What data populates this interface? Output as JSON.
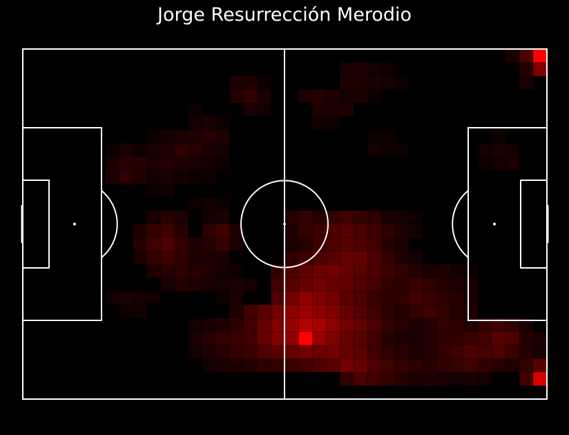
{
  "title": "Jorge Resurrección Merodio",
  "colors": {
    "background": "#000000",
    "lines": "#ffffff",
    "heat": "#ff0000"
  },
  "chart_data": {
    "type": "heatmap",
    "title": "Jorge Resurrección Merodio",
    "grid_cols": 38,
    "grid_rows": 26,
    "value_range": [
      0,
      1
    ],
    "cells": [
      [
        0,
        36,
        0.3
      ],
      [
        0,
        37,
        1.0
      ],
      [
        1,
        36,
        0.15
      ],
      [
        1,
        37,
        0.5
      ],
      [
        0,
        35,
        0.1
      ],
      [
        2,
        36,
        0.1
      ],
      [
        2,
        17,
        0.05
      ],
      [
        1,
        23,
        0.1
      ],
      [
        1,
        24,
        0.12
      ],
      [
        1,
        25,
        0.08
      ],
      [
        1,
        26,
        0.06
      ],
      [
        2,
        16,
        0.12
      ],
      [
        2,
        15,
        0.1
      ],
      [
        2,
        23,
        0.12
      ],
      [
        2,
        24,
        0.1
      ],
      [
        2,
        25,
        0.1
      ],
      [
        2,
        26,
        0.08
      ],
      [
        2,
        27,
        0.05
      ],
      [
        3,
        15,
        0.15
      ],
      [
        3,
        16,
        0.2
      ],
      [
        3,
        17,
        0.1
      ],
      [
        3,
        20,
        0.1
      ],
      [
        3,
        21,
        0.15
      ],
      [
        3,
        22,
        0.12
      ],
      [
        3,
        23,
        0.08
      ],
      [
        3,
        24,
        0.1
      ],
      [
        3,
        25,
        0.06
      ],
      [
        4,
        16,
        0.1
      ],
      [
        4,
        17,
        0.08
      ],
      [
        4,
        21,
        0.12
      ],
      [
        4,
        22,
        0.1
      ],
      [
        4,
        23,
        0.12
      ],
      [
        5,
        21,
        0.08
      ],
      [
        5,
        22,
        0.06
      ],
      [
        4,
        12,
        0.05
      ],
      [
        5,
        12,
        0.08
      ],
      [
        5,
        13,
        0.1
      ],
      [
        5,
        14,
        0.06
      ],
      [
        6,
        11,
        0.1
      ],
      [
        6,
        12,
        0.12
      ],
      [
        6,
        13,
        0.15
      ],
      [
        6,
        14,
        0.12
      ],
      [
        6,
        9,
        0.05
      ],
      [
        6,
        10,
        0.08
      ],
      [
        7,
        9,
        0.1
      ],
      [
        7,
        10,
        0.12
      ],
      [
        7,
        11,
        0.18
      ],
      [
        7,
        12,
        0.15
      ],
      [
        7,
        13,
        0.1
      ],
      [
        7,
        14,
        0.08
      ],
      [
        8,
        7,
        0.1
      ],
      [
        8,
        8,
        0.1
      ],
      [
        8,
        9,
        0.12
      ],
      [
        8,
        10,
        0.15
      ],
      [
        8,
        11,
        0.12
      ],
      [
        8,
        12,
        0.1
      ],
      [
        8,
        13,
        0.08
      ],
      [
        8,
        14,
        0.06
      ],
      [
        9,
        7,
        0.08
      ],
      [
        9,
        8,
        0.12
      ],
      [
        9,
        9,
        0.15
      ],
      [
        9,
        10,
        0.1
      ],
      [
        9,
        11,
        0.08
      ],
      [
        9,
        12,
        0.06
      ],
      [
        9,
        13,
        0.05
      ],
      [
        6,
        25,
        0.05
      ],
      [
        6,
        26,
        0.06
      ],
      [
        7,
        25,
        0.08
      ],
      [
        7,
        26,
        0.06
      ],
      [
        7,
        27,
        0.05
      ],
      [
        6,
        34,
        0.05
      ],
      [
        7,
        33,
        0.08
      ],
      [
        7,
        34,
        0.1
      ],
      [
        7,
        35,
        0.08
      ],
      [
        8,
        33,
        0.06
      ],
      [
        8,
        34,
        0.08
      ],
      [
        8,
        35,
        0.1
      ],
      [
        7,
        6,
        0.05
      ],
      [
        7,
        7,
        0.1
      ],
      [
        7,
        8,
        0.06
      ],
      [
        8,
        6,
        0.1
      ],
      [
        8,
        7,
        0.15
      ],
      [
        8,
        8,
        0.15
      ],
      [
        8,
        9,
        0.1
      ],
      [
        9,
        6,
        0.12
      ],
      [
        9,
        7,
        0.18
      ],
      [
        9,
        8,
        0.12
      ],
      [
        9,
        9,
        0.08
      ],
      [
        10,
        9,
        0.05
      ],
      [
        10,
        10,
        0.08
      ],
      [
        11,
        12,
        0.06
      ],
      [
        11,
        13,
        0.08
      ],
      [
        11,
        14,
        0.05
      ],
      [
        12,
        9,
        0.1
      ],
      [
        12,
        10,
        0.15
      ],
      [
        12,
        11,
        0.12
      ],
      [
        12,
        13,
        0.08
      ],
      [
        12,
        14,
        0.1
      ],
      [
        13,
        8,
        0.12
      ],
      [
        13,
        9,
        0.2
      ],
      [
        13,
        10,
        0.25
      ],
      [
        13,
        11,
        0.15
      ],
      [
        13,
        13,
        0.18
      ],
      [
        13,
        14,
        0.25
      ],
      [
        13,
        15,
        0.12
      ],
      [
        14,
        8,
        0.15
      ],
      [
        14,
        9,
        0.25
      ],
      [
        14,
        10,
        0.3
      ],
      [
        14,
        11,
        0.2
      ],
      [
        14,
        12,
        0.12
      ],
      [
        14,
        13,
        0.15
      ],
      [
        14,
        14,
        0.2
      ],
      [
        14,
        15,
        0.1
      ],
      [
        15,
        8,
        0.1
      ],
      [
        15,
        9,
        0.2
      ],
      [
        15,
        10,
        0.25
      ],
      [
        15,
        11,
        0.18
      ],
      [
        15,
        12,
        0.1
      ],
      [
        15,
        13,
        0.12
      ],
      [
        15,
        14,
        0.1
      ],
      [
        16,
        9,
        0.12
      ],
      [
        16,
        10,
        0.15
      ],
      [
        16,
        11,
        0.18
      ],
      [
        16,
        12,
        0.15
      ],
      [
        16,
        13,
        0.12
      ],
      [
        16,
        14,
        0.08
      ],
      [
        16,
        15,
        0.06
      ],
      [
        17,
        10,
        0.1
      ],
      [
        17,
        11,
        0.15
      ],
      [
        17,
        12,
        0.12
      ],
      [
        17,
        13,
        0.1
      ],
      [
        17,
        14,
        0.08
      ],
      [
        17,
        15,
        0.1
      ],
      [
        17,
        16,
        0.08
      ],
      [
        18,
        6,
        0.08
      ],
      [
        18,
        7,
        0.1
      ],
      [
        18,
        8,
        0.08
      ],
      [
        18,
        9,
        0.06
      ],
      [
        18,
        14,
        0.06
      ],
      [
        18,
        15,
        0.1
      ],
      [
        19,
        7,
        0.06
      ],
      [
        19,
        8,
        0.08
      ],
      [
        12,
        19,
        0.15
      ],
      [
        12,
        20,
        0.2
      ],
      [
        12,
        21,
        0.15
      ],
      [
        12,
        22,
        0.2
      ],
      [
        12,
        23,
        0.25
      ],
      [
        12,
        24,
        0.2
      ],
      [
        12,
        25,
        0.18
      ],
      [
        12,
        26,
        0.1
      ],
      [
        12,
        27,
        0.08
      ],
      [
        12,
        28,
        0.06
      ],
      [
        13,
        19,
        0.12
      ],
      [
        13,
        20,
        0.2
      ],
      [
        13,
        21,
        0.25
      ],
      [
        13,
        22,
        0.3
      ],
      [
        13,
        23,
        0.35
      ],
      [
        13,
        24,
        0.3
      ],
      [
        13,
        25,
        0.25
      ],
      [
        13,
        26,
        0.18
      ],
      [
        13,
        27,
        0.12
      ],
      [
        13,
        28,
        0.08
      ],
      [
        14,
        19,
        0.1
      ],
      [
        14,
        20,
        0.15
      ],
      [
        14,
        21,
        0.25
      ],
      [
        14,
        22,
        0.3
      ],
      [
        14,
        23,
        0.35
      ],
      [
        14,
        24,
        0.3
      ],
      [
        14,
        25,
        0.25
      ],
      [
        14,
        26,
        0.15
      ],
      [
        14,
        27,
        0.1
      ],
      [
        15,
        19,
        0.18
      ],
      [
        15,
        20,
        0.25
      ],
      [
        15,
        21,
        0.3
      ],
      [
        15,
        22,
        0.35
      ],
      [
        15,
        23,
        0.4
      ],
      [
        15,
        24,
        0.38
      ],
      [
        15,
        25,
        0.3
      ],
      [
        15,
        26,
        0.2
      ],
      [
        15,
        27,
        0.12
      ],
      [
        15,
        28,
        0.08
      ],
      [
        16,
        18,
        0.2
      ],
      [
        16,
        19,
        0.3
      ],
      [
        16,
        20,
        0.38
      ],
      [
        16,
        21,
        0.42
      ],
      [
        16,
        22,
        0.45
      ],
      [
        16,
        23,
        0.4
      ],
      [
        16,
        24,
        0.35
      ],
      [
        16,
        25,
        0.3
      ],
      [
        16,
        26,
        0.25
      ],
      [
        16,
        27,
        0.2
      ],
      [
        16,
        28,
        0.15
      ],
      [
        16,
        29,
        0.1
      ],
      [
        16,
        30,
        0.12
      ],
      [
        16,
        31,
        0.08
      ],
      [
        16,
        32,
        0.06
      ],
      [
        17,
        18,
        0.25
      ],
      [
        17,
        19,
        0.35
      ],
      [
        17,
        20,
        0.4
      ],
      [
        17,
        21,
        0.45
      ],
      [
        17,
        22,
        0.4
      ],
      [
        17,
        23,
        0.38
      ],
      [
        17,
        24,
        0.32
      ],
      [
        17,
        25,
        0.28
      ],
      [
        17,
        26,
        0.2
      ],
      [
        17,
        27,
        0.18
      ],
      [
        17,
        28,
        0.22
      ],
      [
        17,
        29,
        0.2
      ],
      [
        17,
        30,
        0.15
      ],
      [
        17,
        31,
        0.12
      ],
      [
        17,
        32,
        0.1
      ],
      [
        18,
        18,
        0.3
      ],
      [
        18,
        19,
        0.45
      ],
      [
        18,
        20,
        0.55
      ],
      [
        18,
        21,
        0.5
      ],
      [
        18,
        22,
        0.45
      ],
      [
        18,
        23,
        0.35
      ],
      [
        18,
        24,
        0.3
      ],
      [
        18,
        25,
        0.22
      ],
      [
        18,
        26,
        0.18
      ],
      [
        18,
        27,
        0.2
      ],
      [
        18,
        28,
        0.25
      ],
      [
        18,
        29,
        0.22
      ],
      [
        18,
        30,
        0.18
      ],
      [
        18,
        31,
        0.15
      ],
      [
        18,
        32,
        0.1
      ],
      [
        19,
        15,
        0.12
      ],
      [
        19,
        16,
        0.25
      ],
      [
        19,
        17,
        0.35
      ],
      [
        19,
        18,
        0.45
      ],
      [
        19,
        19,
        0.55
      ],
      [
        19,
        20,
        0.6
      ],
      [
        19,
        21,
        0.55
      ],
      [
        19,
        22,
        0.5
      ],
      [
        19,
        23,
        0.4
      ],
      [
        19,
        24,
        0.32
      ],
      [
        19,
        25,
        0.25
      ],
      [
        19,
        26,
        0.18
      ],
      [
        19,
        27,
        0.15
      ],
      [
        19,
        28,
        0.2
      ],
      [
        19,
        29,
        0.25
      ],
      [
        19,
        30,
        0.2
      ],
      [
        19,
        31,
        0.15
      ],
      [
        19,
        32,
        0.12
      ],
      [
        20,
        12,
        0.08
      ],
      [
        20,
        13,
        0.1
      ],
      [
        20,
        14,
        0.12
      ],
      [
        20,
        15,
        0.18
      ],
      [
        20,
        16,
        0.25
      ],
      [
        20,
        17,
        0.4
      ],
      [
        20,
        18,
        0.5
      ],
      [
        20,
        19,
        0.6
      ],
      [
        20,
        20,
        0.7
      ],
      [
        20,
        21,
        0.65
      ],
      [
        20,
        22,
        0.55
      ],
      [
        20,
        23,
        0.45
      ],
      [
        20,
        24,
        0.38
      ],
      [
        20,
        25,
        0.3
      ],
      [
        20,
        26,
        0.2
      ],
      [
        20,
        27,
        0.15
      ],
      [
        20,
        28,
        0.12
      ],
      [
        20,
        29,
        0.15
      ],
      [
        20,
        30,
        0.2
      ],
      [
        20,
        31,
        0.18
      ],
      [
        20,
        32,
        0.12
      ],
      [
        20,
        33,
        0.2
      ],
      [
        20,
        34,
        0.25
      ],
      [
        20,
        35,
        0.2
      ],
      [
        20,
        36,
        0.1
      ],
      [
        21,
        12,
        0.1
      ],
      [
        21,
        13,
        0.15
      ],
      [
        21,
        14,
        0.2
      ],
      [
        21,
        15,
        0.22
      ],
      [
        21,
        16,
        0.25
      ],
      [
        21,
        17,
        0.4
      ],
      [
        21,
        18,
        0.5
      ],
      [
        21,
        19,
        0.55
      ],
      [
        21,
        20,
        1.0
      ],
      [
        21,
        21,
        0.6
      ],
      [
        21,
        22,
        0.5
      ],
      [
        21,
        23,
        0.4
      ],
      [
        21,
        24,
        0.35
      ],
      [
        21,
        25,
        0.25
      ],
      [
        21,
        26,
        0.15
      ],
      [
        21,
        27,
        0.12
      ],
      [
        21,
        28,
        0.1
      ],
      [
        21,
        29,
        0.15
      ],
      [
        21,
        30,
        0.18
      ],
      [
        21,
        31,
        0.2
      ],
      [
        21,
        32,
        0.22
      ],
      [
        21,
        33,
        0.25
      ],
      [
        21,
        34,
        0.35
      ],
      [
        21,
        35,
        0.3
      ],
      [
        21,
        36,
        0.15
      ],
      [
        21,
        37,
        0.1
      ],
      [
        22,
        12,
        0.08
      ],
      [
        22,
        13,
        0.12
      ],
      [
        22,
        14,
        0.15
      ],
      [
        22,
        15,
        0.2
      ],
      [
        22,
        16,
        0.22
      ],
      [
        22,
        17,
        0.3
      ],
      [
        22,
        18,
        0.35
      ],
      [
        22,
        19,
        0.4
      ],
      [
        22,
        20,
        0.45
      ],
      [
        22,
        21,
        0.42
      ],
      [
        22,
        22,
        0.45
      ],
      [
        22,
        23,
        0.4
      ],
      [
        22,
        24,
        0.35
      ],
      [
        22,
        25,
        0.25
      ],
      [
        22,
        26,
        0.18
      ],
      [
        22,
        27,
        0.15
      ],
      [
        22,
        28,
        0.12
      ],
      [
        22,
        29,
        0.15
      ],
      [
        22,
        30,
        0.2
      ],
      [
        22,
        31,
        0.25
      ],
      [
        22,
        32,
        0.3
      ],
      [
        22,
        33,
        0.28
      ],
      [
        22,
        34,
        0.3
      ],
      [
        22,
        35,
        0.22
      ],
      [
        22,
        36,
        0.15
      ],
      [
        22,
        37,
        0.1
      ],
      [
        23,
        13,
        0.08
      ],
      [
        23,
        14,
        0.1
      ],
      [
        23,
        15,
        0.12
      ],
      [
        23,
        16,
        0.15
      ],
      [
        23,
        17,
        0.18
      ],
      [
        23,
        18,
        0.2
      ],
      [
        23,
        19,
        0.22
      ],
      [
        23,
        20,
        0.25
      ],
      [
        23,
        21,
        0.3
      ],
      [
        23,
        22,
        0.35
      ],
      [
        23,
        23,
        0.45
      ],
      [
        23,
        24,
        0.4
      ],
      [
        23,
        25,
        0.3
      ],
      [
        23,
        26,
        0.25
      ],
      [
        23,
        27,
        0.2
      ],
      [
        23,
        28,
        0.18
      ],
      [
        23,
        29,
        0.15
      ],
      [
        23,
        30,
        0.2
      ],
      [
        23,
        31,
        0.22
      ],
      [
        23,
        32,
        0.25
      ],
      [
        23,
        33,
        0.2
      ],
      [
        23,
        34,
        0.15
      ],
      [
        23,
        35,
        0.12
      ],
      [
        23,
        36,
        0.2
      ],
      [
        23,
        37,
        0.35
      ],
      [
        24,
        23,
        0.2
      ],
      [
        24,
        24,
        0.3
      ],
      [
        24,
        25,
        0.25
      ],
      [
        24,
        26,
        0.2
      ],
      [
        24,
        27,
        0.15
      ],
      [
        24,
        28,
        0.1
      ],
      [
        24,
        29,
        0.12
      ],
      [
        24,
        30,
        0.1
      ],
      [
        24,
        31,
        0.08
      ],
      [
        24,
        32,
        0.1
      ],
      [
        24,
        33,
        0.08
      ],
      [
        24,
        36,
        0.25
      ],
      [
        24,
        37,
        0.85
      ]
    ]
  }
}
